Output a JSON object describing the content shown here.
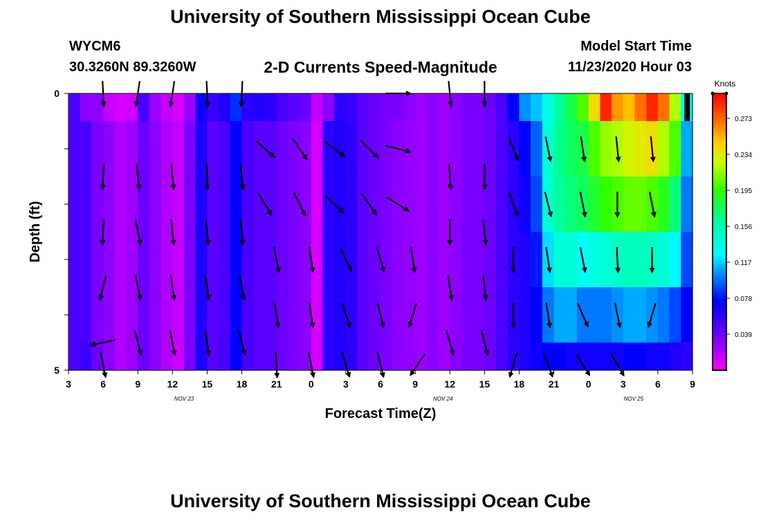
{
  "header": {
    "title": "University of Southern Mississippi Ocean Cube",
    "station": "WYCM6",
    "coords": "30.3260N 89.3260W",
    "subtitle": "2-D Currents Speed-Magnitude",
    "model_label": "Model Start Time",
    "model_time": "11/23/2020 Hour 03"
  },
  "footer": {
    "title": "University of Southern Mississippi Ocean Cube"
  },
  "chart_data": {
    "type": "heatmap",
    "xlabel": "Forecast Time(Z)",
    "ylabel": "Depth (ft)",
    "x_range_hours": [
      0,
      54
    ],
    "y_range": [
      0,
      5
    ],
    "x_ticks": [
      "3",
      "6",
      "9",
      "12",
      "15",
      "18",
      "21",
      "0",
      "3",
      "6",
      "9",
      "12",
      "15",
      "18",
      "21",
      "0",
      "3",
      "6",
      "9"
    ],
    "y_ticks": [
      "0",
      "",
      "",
      "",
      "",
      "5"
    ],
    "date_labels": [
      {
        "text": "NOV 23",
        "hour": 10
      },
      {
        "text": "NOV 24",
        "hour": 32.4
      },
      {
        "text": "NOV 25",
        "hour": 48.9
      }
    ],
    "colorbar": {
      "label": "Knots",
      "min": 0.0,
      "max": 0.3,
      "ticks": [
        "0.039",
        "0.078",
        "0.117",
        "0.156",
        "0.195",
        "0.234",
        "0.273"
      ]
    },
    "speed_columns": [
      {
        "h": 0,
        "v": [
          0.05,
          0.05,
          0.05,
          0.05,
          0.05,
          0.05
        ]
      },
      {
        "h": 1,
        "v": [
          0.03,
          0.05,
          0.05,
          0.05,
          0.05,
          0.055
        ]
      },
      {
        "h": 2,
        "v": [
          0.03,
          0.035,
          0.035,
          0.035,
          0.035,
          0.04
        ]
      },
      {
        "h": 3,
        "v": [
          0.015,
          0.03,
          0.03,
          0.03,
          0.03,
          0.03
        ]
      },
      {
        "h": 4,
        "v": [
          0.01,
          0.02,
          0.02,
          0.02,
          0.02,
          0.02
        ]
      },
      {
        "h": 5,
        "v": [
          0.012,
          0.025,
          0.025,
          0.025,
          0.025,
          0.025
        ]
      },
      {
        "h": 6,
        "v": [
          0.05,
          0.04,
          0.04,
          0.04,
          0.04,
          0.04
        ]
      },
      {
        "h": 7,
        "v": [
          0.025,
          0.03,
          0.03,
          0.03,
          0.03,
          0.03
        ]
      },
      {
        "h": 8,
        "v": [
          0.015,
          0.02,
          0.02,
          0.02,
          0.02,
          0.02
        ]
      },
      {
        "h": 9,
        "v": [
          0.01,
          0.015,
          0.015,
          0.015,
          0.015,
          0.012
        ]
      },
      {
        "h": 10,
        "v": [
          0.025,
          0.035,
          0.035,
          0.035,
          0.035,
          0.035
        ]
      },
      {
        "h": 11,
        "v": [
          0.07,
          0.065,
          0.065,
          0.065,
          0.065,
          0.065
        ]
      },
      {
        "h": 12,
        "v": [
          0.055,
          0.045,
          0.045,
          0.045,
          0.045,
          0.045
        ]
      },
      {
        "h": 13,
        "v": [
          0.065,
          0.05,
          0.05,
          0.05,
          0.05,
          0.05
        ]
      },
      {
        "h": 14,
        "v": [
          0.085,
          0.075,
          0.075,
          0.075,
          0.075,
          0.075
        ]
      },
      {
        "h": 15,
        "v": [
          0.06,
          0.05,
          0.05,
          0.05,
          0.05,
          0.05
        ]
      },
      {
        "h": 16,
        "v": [
          0.065,
          0.045,
          0.045,
          0.045,
          0.045,
          0.045
        ]
      },
      {
        "h": 17,
        "v": [
          0.06,
          0.045,
          0.045,
          0.045,
          0.045,
          0.045
        ]
      },
      {
        "h": 18,
        "v": [
          0.05,
          0.04,
          0.04,
          0.04,
          0.04,
          0.04
        ]
      },
      {
        "h": 19,
        "v": [
          0.045,
          0.035,
          0.035,
          0.035,
          0.035,
          0.035
        ]
      },
      {
        "h": 20,
        "v": [
          0.04,
          0.03,
          0.03,
          0.03,
          0.03,
          0.03
        ]
      },
      {
        "h": 21,
        "v": [
          0.015,
          0.01,
          0.01,
          0.01,
          0.01,
          0.01
        ]
      },
      {
        "h": 22,
        "v": [
          0.03,
          0.06,
          0.06,
          0.06,
          0.06,
          0.06
        ]
      },
      {
        "h": 23,
        "v": [
          0.06,
          0.065,
          0.065,
          0.065,
          0.065,
          0.065
        ]
      },
      {
        "h": 24,
        "v": [
          0.055,
          0.06,
          0.06,
          0.06,
          0.06,
          0.06
        ]
      },
      {
        "h": 25,
        "v": [
          0.045,
          0.045,
          0.045,
          0.045,
          0.045,
          0.045
        ]
      },
      {
        "h": 26,
        "v": [
          0.04,
          0.04,
          0.04,
          0.04,
          0.04,
          0.04
        ]
      },
      {
        "h": 27,
        "v": [
          0.035,
          0.035,
          0.035,
          0.035,
          0.035,
          0.035
        ]
      },
      {
        "h": 28,
        "v": [
          0.035,
          0.03,
          0.03,
          0.03,
          0.03,
          0.03
        ]
      },
      {
        "h": 29,
        "v": [
          0.03,
          0.028,
          0.028,
          0.028,
          0.028,
          0.028
        ]
      },
      {
        "h": 30,
        "v": [
          0.025,
          0.025,
          0.025,
          0.025,
          0.025,
          0.025
        ]
      },
      {
        "h": 31,
        "v": [
          0.03,
          0.03,
          0.03,
          0.03,
          0.03,
          0.03
        ]
      },
      {
        "h": 32,
        "v": [
          0.025,
          0.025,
          0.025,
          0.025,
          0.025,
          0.025
        ]
      },
      {
        "h": 33,
        "v": [
          0.03,
          0.03,
          0.03,
          0.03,
          0.03,
          0.03
        ]
      },
      {
        "h": 34,
        "v": [
          0.035,
          0.035,
          0.035,
          0.035,
          0.035,
          0.035
        ]
      },
      {
        "h": 35,
        "v": [
          0.035,
          0.035,
          0.035,
          0.035,
          0.035,
          0.035
        ]
      },
      {
        "h": 36,
        "v": [
          0.04,
          0.04,
          0.04,
          0.04,
          0.04,
          0.04
        ]
      },
      {
        "h": 37,
        "v": [
          0.05,
          0.05,
          0.05,
          0.05,
          0.05,
          0.05
        ]
      },
      {
        "h": 38,
        "v": [
          0.075,
          0.06,
          0.06,
          0.06,
          0.06,
          0.06
        ]
      },
      {
        "h": 39,
        "v": [
          0.105,
          0.075,
          0.07,
          0.065,
          0.065,
          0.065
        ]
      },
      {
        "h": 40,
        "v": [
          0.115,
          0.095,
          0.09,
          0.08,
          0.075,
          0.07
        ]
      },
      {
        "h": 41,
        "v": [
          0.135,
          0.14,
          0.14,
          0.12,
          0.1,
          0.075
        ]
      },
      {
        "h": 42,
        "v": [
          0.16,
          0.165,
          0.16,
          0.14,
          0.11,
          0.075
        ]
      },
      {
        "h": 43,
        "v": [
          0.18,
          0.175,
          0.17,
          0.14,
          0.11,
          0.07
        ]
      },
      {
        "h": 44,
        "v": [
          0.2,
          0.18,
          0.175,
          0.13,
          0.1,
          0.07
        ]
      },
      {
        "h": 45,
        "v": [
          0.24,
          0.2,
          0.185,
          0.135,
          0.1,
          0.07
        ]
      },
      {
        "h": 46,
        "v": [
          0.29,
          0.215,
          0.195,
          0.14,
          0.1,
          0.07
        ]
      },
      {
        "h": 47,
        "v": [
          0.26,
          0.22,
          0.2,
          0.145,
          0.105,
          0.07
        ]
      },
      {
        "h": 48,
        "v": [
          0.25,
          0.23,
          0.205,
          0.15,
          0.11,
          0.075
        ]
      },
      {
        "h": 49,
        "v": [
          0.27,
          0.235,
          0.205,
          0.15,
          0.11,
          0.075
        ]
      },
      {
        "h": 50,
        "v": [
          0.29,
          0.24,
          0.2,
          0.145,
          0.105,
          0.07
        ]
      },
      {
        "h": 51,
        "v": [
          0.27,
          0.22,
          0.19,
          0.14,
          0.1,
          0.07
        ]
      },
      {
        "h": 52,
        "v": [
          0.22,
          0.2,
          0.17,
          0.125,
          0.09,
          0.065
        ]
      },
      {
        "h": 53,
        "v": [
          0.13,
          0.11,
          0.1,
          0.09,
          0.075,
          0.06
        ]
      }
    ],
    "vectors": [
      {
        "h": 3,
        "d": 0,
        "u": 0.05,
        "v": -1
      },
      {
        "h": 6,
        "d": 0,
        "u": -0.15,
        "v": -1
      },
      {
        "h": 9,
        "d": 0,
        "u": -0.15,
        "v": -1
      },
      {
        "h": 12,
        "d": 0,
        "u": 0.05,
        "v": -1
      },
      {
        "h": 15,
        "d": 0,
        "u": -0.05,
        "v": -1
      },
      {
        "h": 28.5,
        "d": 0,
        "u": 1,
        "v": 0
      },
      {
        "h": 33,
        "d": 0,
        "u": 0.1,
        "v": -1
      },
      {
        "h": 36,
        "d": 0,
        "u": 0,
        "v": -1
      },
      {
        "h": 17,
        "d": 1,
        "u": 0.85,
        "v": -0.75
      },
      {
        "h": 20,
        "d": 1,
        "u": 0.6,
        "v": -0.85
      },
      {
        "h": 23,
        "d": 1,
        "u": 0.85,
        "v": -0.65
      },
      {
        "h": 26,
        "d": 1,
        "u": 0.75,
        "v": -0.75
      },
      {
        "h": 28.5,
        "d": 1,
        "u": 1,
        "v": -0.25
      },
      {
        "h": 38.5,
        "d": 1,
        "u": 0.4,
        "v": -1
      },
      {
        "h": 41.5,
        "d": 1,
        "u": 0.2,
        "v": -1
      },
      {
        "h": 44.5,
        "d": 1,
        "u": 0.15,
        "v": -1
      },
      {
        "h": 47.5,
        "d": 1,
        "u": 0.1,
        "v": -1
      },
      {
        "h": 50.5,
        "d": 1,
        "u": 0.1,
        "v": -1
      },
      {
        "h": 3,
        "d": 1.5,
        "u": -0.05,
        "v": -1
      },
      {
        "h": 6,
        "d": 1.5,
        "u": 0.1,
        "v": -1
      },
      {
        "h": 9,
        "d": 1.5,
        "u": 0.1,
        "v": -1
      },
      {
        "h": 12,
        "d": 1.5,
        "u": 0.05,
        "v": -1
      },
      {
        "h": 15,
        "d": 1.5,
        "u": 0.1,
        "v": -1
      },
      {
        "h": 33,
        "d": 1.5,
        "u": 0.05,
        "v": -1
      },
      {
        "h": 36,
        "d": 1.5,
        "u": 0,
        "v": -1
      },
      {
        "h": 17,
        "d": 2,
        "u": 0.55,
        "v": -0.9
      },
      {
        "h": 20,
        "d": 2,
        "u": 0.45,
        "v": -0.9
      },
      {
        "h": 23,
        "d": 2,
        "u": 0.8,
        "v": -0.75
      },
      {
        "h": 26,
        "d": 2,
        "u": 0.6,
        "v": -0.85
      },
      {
        "h": 28.5,
        "d": 2,
        "u": 0.95,
        "v": -0.6
      },
      {
        "h": 38.5,
        "d": 2,
        "u": 0.35,
        "v": -1
      },
      {
        "h": 41.5,
        "d": 2,
        "u": 0.25,
        "v": -1
      },
      {
        "h": 44.5,
        "d": 2,
        "u": 0.2,
        "v": -1
      },
      {
        "h": 47.5,
        "d": 2,
        "u": 0,
        "v": -1
      },
      {
        "h": 50.5,
        "d": 2,
        "u": 0.2,
        "v": -1
      },
      {
        "h": 3,
        "d": 2.5,
        "u": -0.05,
        "v": -1
      },
      {
        "h": 6,
        "d": 2.5,
        "u": 0.2,
        "v": -1
      },
      {
        "h": 9,
        "d": 2.5,
        "u": 0.1,
        "v": -1
      },
      {
        "h": 12,
        "d": 2.5,
        "u": 0.1,
        "v": -1
      },
      {
        "h": 15,
        "d": 2.5,
        "u": 0.1,
        "v": -1
      },
      {
        "h": 33,
        "d": 2.5,
        "u": 0,
        "v": -1
      },
      {
        "h": 36,
        "d": 2.5,
        "u": 0.1,
        "v": -1
      },
      {
        "h": 18,
        "d": 3,
        "u": 0.2,
        "v": -1
      },
      {
        "h": 21,
        "d": 3,
        "u": 0.15,
        "v": -1
      },
      {
        "h": 24,
        "d": 3,
        "u": 0.45,
        "v": -0.9
      },
      {
        "h": 27,
        "d": 3,
        "u": 0.3,
        "v": -1
      },
      {
        "h": 29.8,
        "d": 3,
        "u": 0.15,
        "v": -1
      },
      {
        "h": 38.5,
        "d": 3,
        "u": 0,
        "v": -1
      },
      {
        "h": 41.5,
        "d": 3,
        "u": 0.15,
        "v": -1
      },
      {
        "h": 44.5,
        "d": 3,
        "u": 0.2,
        "v": -1
      },
      {
        "h": 47.5,
        "d": 3,
        "u": 0.05,
        "v": -1
      },
      {
        "h": 50.5,
        "d": 3,
        "u": 0,
        "v": -1
      },
      {
        "h": 3,
        "d": 3.5,
        "u": -0.25,
        "v": -1
      },
      {
        "h": 6,
        "d": 3.5,
        "u": 0.2,
        "v": -1
      },
      {
        "h": 9,
        "d": 3.5,
        "u": 0.15,
        "v": -1
      },
      {
        "h": 12,
        "d": 3.5,
        "u": 0.15,
        "v": -1
      },
      {
        "h": 15,
        "d": 3.5,
        "u": 0.2,
        "v": -1
      },
      {
        "h": 33,
        "d": 3.5,
        "u": 0.15,
        "v": -1
      },
      {
        "h": 36,
        "d": 3.5,
        "u": 0.1,
        "v": -1
      },
      {
        "h": 18,
        "d": 4,
        "u": 0.15,
        "v": -1
      },
      {
        "h": 21,
        "d": 4,
        "u": 0.15,
        "v": -1
      },
      {
        "h": 24,
        "d": 4,
        "u": 0.35,
        "v": -1
      },
      {
        "h": 27,
        "d": 4,
        "u": 0.25,
        "v": -1
      },
      {
        "h": 29.8,
        "d": 4,
        "u": -0.3,
        "v": -1
      },
      {
        "h": 38.5,
        "d": 4,
        "u": 0,
        "v": -1
      },
      {
        "h": 41.5,
        "d": 4,
        "u": 0.15,
        "v": -1
      },
      {
        "h": 44.5,
        "d": 4,
        "u": 0.4,
        "v": -0.9
      },
      {
        "h": 47.5,
        "d": 4,
        "u": 0.2,
        "v": -1
      },
      {
        "h": 50.5,
        "d": 4,
        "u": -0.3,
        "v": -1
      },
      {
        "h": 3,
        "d": 4.5,
        "u": -1,
        "v": -0.2
      },
      {
        "h": 6,
        "d": 4.5,
        "u": 0.25,
        "v": -1
      },
      {
        "h": 9,
        "d": 4.5,
        "u": 0.2,
        "v": -1
      },
      {
        "h": 12,
        "d": 4.5,
        "u": 0.15,
        "v": -1
      },
      {
        "h": 15,
        "d": 4.5,
        "u": 0.25,
        "v": -1
      },
      {
        "h": 33,
        "d": 4.5,
        "u": 0.3,
        "v": -1
      },
      {
        "h": 36,
        "d": 4.5,
        "u": 0.25,
        "v": -1
      },
      {
        "h": 3,
        "d": 4.9,
        "u": 0.2,
        "v": -1
      },
      {
        "h": 18,
        "d": 4.9,
        "u": 0.05,
        "v": -1
      },
      {
        "h": 21,
        "d": 4.9,
        "u": 0.2,
        "v": -1
      },
      {
        "h": 24,
        "d": 4.9,
        "u": 0.3,
        "v": -1
      },
      {
        "h": 27,
        "d": 4.9,
        "u": 0.25,
        "v": -1
      },
      {
        "h": 30.2,
        "d": 4.9,
        "u": -0.6,
        "v": -0.9
      },
      {
        "h": 38.5,
        "d": 4.9,
        "u": -0.3,
        "v": -1
      },
      {
        "h": 41.5,
        "d": 4.9,
        "u": 0.35,
        "v": -0.95
      },
      {
        "h": 44.5,
        "d": 4.9,
        "u": 0.55,
        "v": -0.85
      },
      {
        "h": 47.5,
        "d": 4.9,
        "u": 0.5,
        "v": -0.85
      }
    ],
    "top_right_marker": {
      "h": 53.3,
      "d": 0,
      "d_end": 0.5,
      "color": "#000000"
    }
  }
}
